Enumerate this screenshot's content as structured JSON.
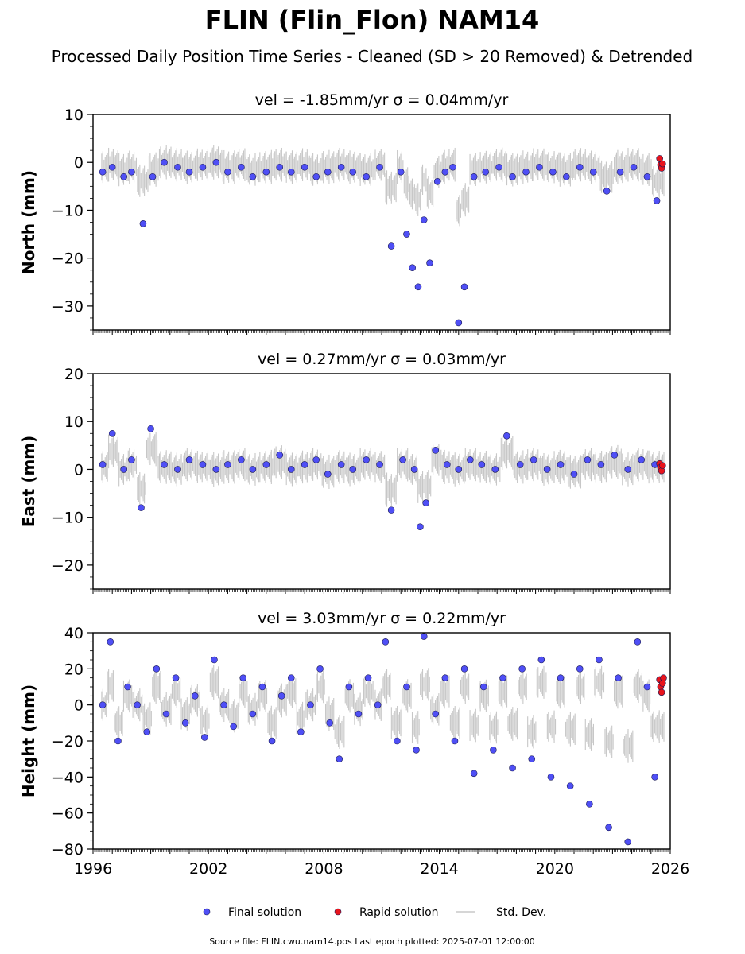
{
  "title": "FLIN (Flin_Flon) NAM14",
  "subtitle": "Processed Daily Position Time Series - Cleaned (SD > 20 Removed) & Detrended",
  "footer": "Source file: FLIN.cwu.nam14.pos  Last epoch plotted: 2025-07-01 12:00:00",
  "legend": {
    "placement": "bottom-center",
    "items": [
      {
        "label": "Final solution",
        "color": "#4f4ff5",
        "kind": "dot"
      },
      {
        "label": "Rapid solution",
        "color": "#e8141c",
        "kind": "dot"
      },
      {
        "label": "Std. Dev.",
        "color": "#c8c8c8",
        "kind": "line"
      }
    ]
  },
  "chart_data": [
    {
      "type": "scatter",
      "ylabel": "North (mm)",
      "panel_title": "vel = -1.85mm/yr   σ = 0.04mm/yr",
      "xlim": [
        1996,
        2026
      ],
      "ylim": [
        -35,
        10
      ],
      "yticks": [
        10,
        0,
        -10,
        -20,
        -30
      ],
      "xticks": [],
      "series": [
        {
          "name": "Final solution",
          "color": "#4f4ff5",
          "x": [
            1996.5,
            1997.0,
            1997.6,
            1998.0,
            1998.6,
            1999.1,
            1999.7,
            2000.4,
            2001.0,
            2001.7,
            2002.4,
            2003.0,
            2003.7,
            2004.3,
            2005.0,
            2005.7,
            2006.3,
            2007.0,
            2007.6,
            2008.2,
            2008.9,
            2009.5,
            2010.2,
            2010.9,
            2011.5,
            2012.0,
            2012.3,
            2012.6,
            2012.9,
            2013.2,
            2013.5,
            2013.9,
            2014.3,
            2014.7,
            2015.0,
            2015.3,
            2015.8,
            2016.4,
            2017.1,
            2017.8,
            2018.5,
            2019.2,
            2019.9,
            2020.6,
            2021.3,
            2022.0,
            2022.7,
            2023.4,
            2024.1,
            2024.8,
            2025.3
          ],
          "y": [
            -2,
            -1,
            -3,
            -2,
            -12.8,
            -3,
            0,
            -1,
            -2,
            -1,
            0,
            -2,
            -1,
            -3,
            -2,
            -1,
            -2,
            -1,
            -3,
            -2,
            -1,
            -2,
            -3,
            -1,
            -17.5,
            -2,
            -15,
            -22,
            -26,
            -12,
            -21,
            -4,
            -2,
            -1,
            -33.5,
            -26,
            -3,
            -2,
            -1,
            -3,
            -2,
            -1,
            -2,
            -3,
            -1,
            -2,
            -6,
            -2,
            -1,
            -3,
            -8
          ]
        },
        {
          "name": "Rapid solution",
          "color": "#e8141c",
          "x": [
            2025.45,
            2025.5,
            2025.55,
            2025.6
          ],
          "y": [
            0.8,
            -0.5,
            -1.2,
            -0.3
          ]
        }
      ]
    },
    {
      "type": "scatter",
      "ylabel": "East (mm)",
      "panel_title": "vel = 0.27mm/yr   σ = 0.03mm/yr",
      "xlim": [
        1996,
        2026
      ],
      "ylim": [
        -25,
        20
      ],
      "yticks": [
        20,
        10,
        0,
        -10,
        -20
      ],
      "xticks": [],
      "series": [
        {
          "name": "Final solution",
          "color": "#4f4ff5",
          "x": [
            1996.5,
            1997.0,
            1997.6,
            1998.0,
            1998.5,
            1999.0,
            1999.7,
            2000.4,
            2001.0,
            2001.7,
            2002.4,
            2003.0,
            2003.7,
            2004.3,
            2005.0,
            2005.7,
            2006.3,
            2007.0,
            2007.6,
            2008.2,
            2008.9,
            2009.5,
            2010.2,
            2010.9,
            2011.5,
            2012.1,
            2012.7,
            2013.0,
            2013.3,
            2013.8,
            2014.4,
            2015.0,
            2015.6,
            2016.2,
            2016.9,
            2017.5,
            2018.2,
            2018.9,
            2019.6,
            2020.3,
            2021.0,
            2021.7,
            2022.4,
            2023.1,
            2023.8,
            2024.5,
            2025.2
          ],
          "y": [
            1,
            7.5,
            0,
            2,
            -8,
            8.5,
            1,
            0,
            2,
            1,
            0,
            1,
            2,
            0,
            1,
            3,
            0,
            1,
            2,
            -1,
            1,
            0,
            2,
            1,
            -8.5,
            2,
            0,
            -12,
            -7,
            4,
            1,
            0,
            2,
            1,
            0,
            7,
            1,
            2,
            0,
            1,
            -1,
            2,
            1,
            3,
            0,
            2,
            1
          ]
        },
        {
          "name": "Rapid solution",
          "color": "#e8141c",
          "x": [
            2025.45,
            2025.5,
            2025.55,
            2025.6
          ],
          "y": [
            1.2,
            0.4,
            -0.3,
            0.8
          ]
        }
      ]
    },
    {
      "type": "scatter",
      "ylabel": "Height (mm)",
      "panel_title": "vel = 3.03mm/yr   σ = 0.22mm/yr",
      "xlim": [
        1996,
        2026
      ],
      "ylim": [
        -80,
        40
      ],
      "yticks": [
        40,
        20,
        0,
        -20,
        -40,
        -60,
        -80
      ],
      "xticks": [
        1996,
        2002,
        2008,
        2014,
        2020,
        2026
      ],
      "series": [
        {
          "name": "Final solution",
          "color": "#4f4ff5",
          "x": [
            1996.5,
            1996.9,
            1997.3,
            1997.8,
            1998.3,
            1998.8,
            1999.3,
            1999.8,
            2000.3,
            2000.8,
            2001.3,
            2001.8,
            2002.3,
            2002.8,
            2003.3,
            2003.8,
            2004.3,
            2004.8,
            2005.3,
            2005.8,
            2006.3,
            2006.8,
            2007.3,
            2007.8,
            2008.3,
            2008.8,
            2009.3,
            2009.8,
            2010.3,
            2010.8,
            2011.2,
            2011.8,
            2012.3,
            2012.8,
            2013.2,
            2013.8,
            2014.3,
            2014.8,
            2015.3,
            2015.8,
            2016.3,
            2016.8,
            2017.3,
            2017.8,
            2018.3,
            2018.8,
            2019.3,
            2019.8,
            2020.3,
            2020.8,
            2021.3,
            2021.8,
            2022.3,
            2022.8,
            2023.3,
            2023.8,
            2024.3,
            2024.8,
            2025.2
          ],
          "y": [
            0,
            35,
            -20,
            10,
            0,
            -15,
            20,
            -5,
            15,
            -10,
            5,
            -18,
            25,
            0,
            -12,
            15,
            -5,
            10,
            -20,
            5,
            15,
            -15,
            0,
            20,
            -10,
            -30,
            10,
            -5,
            15,
            0,
            35,
            -20,
            10,
            -25,
            38,
            -5,
            15,
            -20,
            20,
            -38,
            10,
            -25,
            15,
            -35,
            20,
            -30,
            25,
            -40,
            15,
            -45,
            20,
            -55,
            25,
            -68,
            15,
            -76,
            35,
            10,
            -40
          ]
        },
        {
          "name": "Rapid solution",
          "color": "#e8141c",
          "x": [
            2025.45,
            2025.5,
            2025.55,
            2025.6,
            2025.65
          ],
          "y": [
            14,
            10,
            7,
            12,
            15
          ]
        }
      ]
    }
  ]
}
